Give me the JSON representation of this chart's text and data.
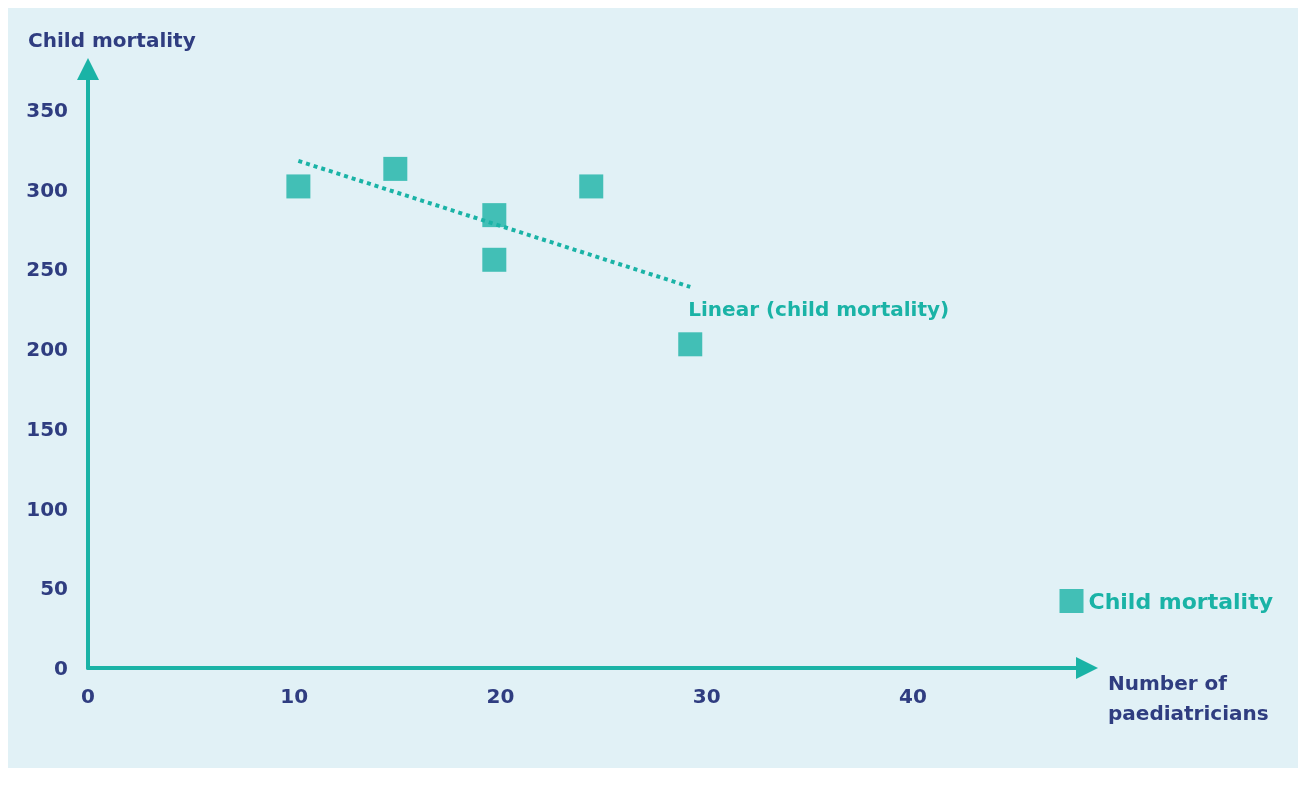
{
  "chart_data": {
    "type": "scatter",
    "xlabel": "Number of\npaediatricians",
    "ylabel": "Child mortality",
    "xlim": [
      0,
      48
    ],
    "ylim": [
      0,
      370
    ],
    "xticks": [
      0,
      10,
      20,
      30,
      40
    ],
    "yticks": [
      0,
      50,
      100,
      150,
      200,
      250,
      300,
      350
    ],
    "grid": false,
    "legend": "bottom right",
    "series": [
      {
        "name": "Child mortality",
        "marker": "square",
        "color": "#1ab3a6",
        "x": [
          10.2,
          14.9,
          19.7,
          19.7,
          24.4,
          29.2
        ],
        "values": [
          302,
          313,
          284,
          256,
          302,
          203
        ]
      },
      {
        "name": "Linear (child mortality)",
        "type": "line",
        "marker": "none",
        "line_style": "dotted",
        "color": "#1ab3a6",
        "x": [
          10.2,
          29.2
        ],
        "values": [
          318,
          239
        ]
      }
    ]
  }
}
